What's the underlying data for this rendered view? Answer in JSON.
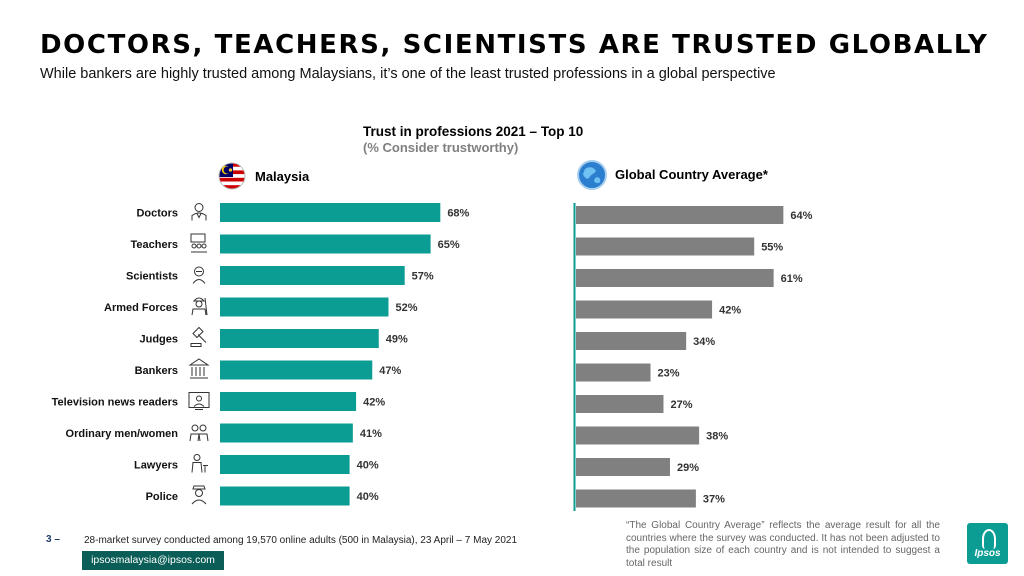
{
  "header": {
    "title": "DOCTORS, TEACHERS, SCIENTISTS ARE TRUSTED GLOBALLY",
    "subtitle": "While bankers are highly trusted among Malaysians, it’s one of the least trusted professions in a global perspective"
  },
  "chart_data": {
    "type": "bar",
    "orientation": "horizontal",
    "title": "Trust in professions 2021 – Top 10",
    "subtitle": "(% Consider trustworthy)",
    "categories": [
      "Doctors",
      "Teachers",
      "Scientists",
      "Armed Forces",
      "Judges",
      "Bankers",
      "Television news readers",
      "Ordinary men/women",
      "Lawyers",
      "Police"
    ],
    "category_icons": [
      "doctor-icon",
      "teacher-icon",
      "scientist-icon",
      "soldier-icon",
      "gavel-icon",
      "bank-icon",
      "tv-presenter-icon",
      "people-icon",
      "lawyer-icon",
      "police-icon"
    ],
    "series": [
      {
        "name": "Malaysia",
        "values": [
          68,
          65,
          57,
          52,
          49,
          47,
          42,
          41,
          40,
          40
        ],
        "color": "#0b9d93",
        "icon": "malaysia-flag-icon"
      },
      {
        "name": "Global Country Average*",
        "values": [
          64,
          55,
          61,
          42,
          34,
          23,
          27,
          38,
          29,
          37
        ],
        "color": "#808080",
        "icon": "globe-icon"
      }
    ],
    "value_suffix": "%",
    "xlim": [
      0,
      100
    ]
  },
  "footer": {
    "page_number": "3 –",
    "source": "28-market survey conducted among 19,570 online adults (500 in Malaysia), 23 April – 7 May 2021",
    "email": "ipsosmalaysia@ipsos.com",
    "footnote": "“The Global Country Average” reflects the average result for all the countries where the survey was conducted. It has not been adjusted to the population size of each country and is not intended to suggest a total result",
    "logo_text": "Ipsos"
  }
}
